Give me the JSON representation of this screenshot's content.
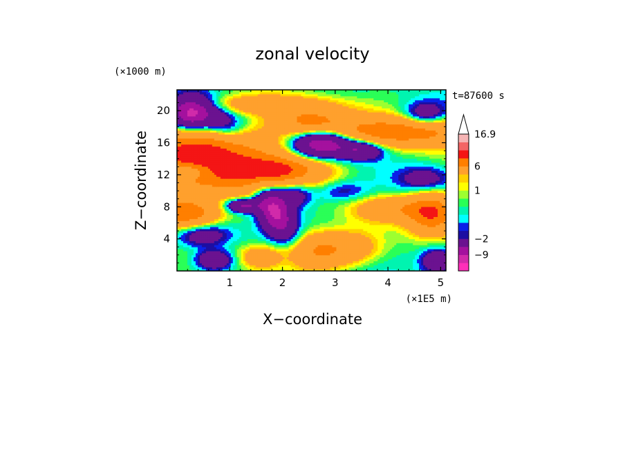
{
  "chart_data": {
    "type": "heatmap",
    "title": "zonal velocity",
    "xlabel": "X−coordinate",
    "ylabel": "Z−coordinate",
    "x_unit": "(×1E5 m)",
    "y_unit": "(×1000 m)",
    "time_label": "t=87600 s",
    "xlim": [
      0,
      5.1
    ],
    "ylim": [
      0,
      22.6
    ],
    "x_ticks": [
      1,
      2,
      3,
      4,
      5
    ],
    "y_ticks": [
      4,
      8,
      12,
      16,
      20
    ],
    "x_tick_labels": [
      "1",
      "2",
      "3",
      "4",
      "5"
    ],
    "y_tick_labels": [
      "4",
      "8",
      "12",
      "16",
      "20"
    ],
    "grid": false,
    "colorbar": {
      "levels": [
        -15,
        -12,
        -9,
        -6,
        -2,
        -1.5,
        -1,
        -0.5,
        0,
        0.5,
        1,
        1.5,
        2,
        6,
        9,
        12,
        16.9
      ],
      "colors": [
        "#ff2fb9",
        "#d12aaa",
        "#a4119e",
        "#6b1290",
        "#1c0ea2",
        "#0a21e8",
        "#00ffff",
        "#00f4b0",
        "#2aff57",
        "#9dff30",
        "#ffff00",
        "#ffd000",
        "#ffa02d",
        "#ff7f00",
        "#f41515",
        "#f46565",
        "#f6b4b4"
      ],
      "tick_labels": [
        "16.9",
        "6",
        "1",
        "−2",
        "−9"
      ],
      "tick_values": [
        16.9,
        6,
        1,
        -2,
        -9
      ],
      "extend": "max"
    }
  }
}
